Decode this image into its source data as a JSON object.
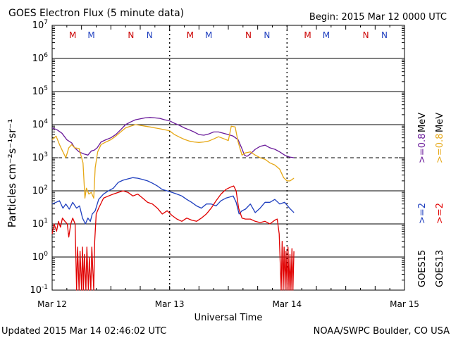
{
  "chart_data": {
    "type": "line",
    "title": "GOES Electron Flux (5 minute data)",
    "begin_label": "Begin: 2015 Mar 12 0000 UTC",
    "ylabel": "Particles cm⁻²s⁻¹sr⁻¹",
    "xlabel": "Universal Time",
    "updated_label": "Updated 2015 Mar 14 02:46:02 UTC",
    "credit_label": "NOAA/SWPC Boulder, CO USA",
    "y_scale": "log",
    "ylim": [
      0.1,
      10000000
    ],
    "y_ticks": [
      {
        "exp": "-1",
        "value": 0.1
      },
      {
        "exp": "0",
        "value": 1
      },
      {
        "exp": "1",
        "value": 10
      },
      {
        "exp": "2",
        "value": 100
      },
      {
        "exp": "3",
        "value": 1000
      },
      {
        "exp": "4",
        "value": 10000
      },
      {
        "exp": "5",
        "value": 100000
      },
      {
        "exp": "6",
        "value": 1000000
      },
      {
        "exp": "7",
        "value": 10000000
      }
    ],
    "y_tick_base": "10",
    "xlim": [
      0,
      72
    ],
    "x_unit": "hours since 2015 Mar 12 0000 UTC",
    "x_ticks": [
      {
        "label": "Mar 12",
        "t": 0
      },
      {
        "label": "Mar 13",
        "t": 24
      },
      {
        "label": "Mar 14",
        "t": 48
      },
      {
        "label": "Mar 15",
        "t": 72
      }
    ],
    "grid": "horizontal solid at decades; dotted vertical at day boundaries; dashed line at 10^3",
    "threshold_line": 1000,
    "mn_markers": [
      {
        "label": "M",
        "t": 4.2,
        "color": "#cc0000"
      },
      {
        "label": "M",
        "t": 8.0,
        "color": "#1f3fbf"
      },
      {
        "label": "N",
        "t": 16.1,
        "color": "#cc0000"
      },
      {
        "label": "N",
        "t": 19.9,
        "color": "#1f3fbf"
      },
      {
        "label": "M",
        "t": 28.2,
        "color": "#cc0000"
      },
      {
        "label": "M",
        "t": 32.0,
        "color": "#1f3fbf"
      },
      {
        "label": "N",
        "t": 40.1,
        "color": "#cc0000"
      },
      {
        "label": "N",
        "t": 43.9,
        "color": "#1f3fbf"
      },
      {
        "label": "M",
        "t": 52.2,
        "color": "#cc0000"
      },
      {
        "label": "M",
        "t": 56.0,
        "color": "#1f3fbf"
      },
      {
        "label": "N",
        "t": 64.1,
        "color": "#cc0000"
      },
      {
        "label": "N",
        "t": 67.9,
        "color": "#1f3fbf"
      }
    ],
    "legend_placement": "right side, vertical",
    "legend": [
      {
        "name": "GOES15",
        "entries": [
          {
            "label": ">=2",
            "unit": "",
            "color": "#1f3fbf"
          },
          {
            "label": ">=0.8",
            "unit": "MeV",
            "color": "#6a1b9a"
          }
        ]
      },
      {
        "name": "GOES13",
        "entries": [
          {
            "label": ">=2",
            "unit": "",
            "color": "#e00000"
          },
          {
            "label": ">=0.8",
            "unit": "MeV",
            "color": "#e6a817"
          }
        ]
      }
    ],
    "series": [
      {
        "name": "GOES15 >=0.8 MeV",
        "color": "#6a1b9a",
        "points": [
          [
            0,
            8000
          ],
          [
            1,
            7000
          ],
          [
            2,
            5500
          ],
          [
            3,
            3500
          ],
          [
            4,
            2800
          ],
          [
            4.6,
            2000
          ],
          [
            5.5,
            1500
          ],
          [
            6.5,
            1300
          ],
          [
            7.3,
            1200
          ],
          [
            8,
            1600
          ],
          [
            8.6,
            1700
          ],
          [
            9.2,
            2000
          ],
          [
            10,
            3000
          ],
          [
            11,
            3500
          ],
          [
            12,
            4000
          ],
          [
            13,
            5000
          ],
          [
            14,
            7000
          ],
          [
            15,
            10000
          ],
          [
            16,
            12000
          ],
          [
            17,
            14000
          ],
          [
            18,
            15000
          ],
          [
            19,
            16000
          ],
          [
            20,
            16500
          ],
          [
            21,
            16000
          ],
          [
            22,
            15500
          ],
          [
            23,
            14000
          ],
          [
            24,
            13000
          ],
          [
            25,
            11000
          ],
          [
            26,
            9500
          ],
          [
            27,
            8000
          ],
          [
            28,
            7000
          ],
          [
            29,
            6000
          ],
          [
            30,
            5000
          ],
          [
            31,
            4800
          ],
          [
            32,
            5200
          ],
          [
            33,
            6000
          ],
          [
            34,
            6000
          ],
          [
            35,
            5500
          ],
          [
            36,
            5000
          ],
          [
            37,
            4500
          ],
          [
            38,
            3500
          ],
          [
            38.7,
            2000
          ],
          [
            39.3,
            1200
          ],
          [
            39.8,
            1100
          ],
          [
            40.5,
            1300
          ],
          [
            41.5,
            1800
          ],
          [
            42.5,
            2200
          ],
          [
            43.5,
            2400
          ],
          [
            44.5,
            2000
          ],
          [
            45.5,
            1800
          ],
          [
            46.5,
            1500
          ],
          [
            47.5,
            1200
          ],
          [
            48.5,
            1050
          ],
          [
            49.4,
            1000
          ]
        ]
      },
      {
        "name": "GOES13 >=0.8 MeV",
        "color": "#e6a817",
        "points": [
          [
            0,
            3500
          ],
          [
            0.8,
            4500
          ],
          [
            1.5,
            2500
          ],
          [
            2.2,
            1500
          ],
          [
            2.8,
            1000
          ],
          [
            3.4,
            2000
          ],
          [
            4,
            2500
          ],
          [
            4.6,
            2000
          ],
          [
            5.5,
            1900
          ],
          [
            6.3,
            700
          ],
          [
            6.7,
            60
          ],
          [
            7,
            120
          ],
          [
            7.5,
            80
          ],
          [
            8,
            90
          ],
          [
            8.5,
            60
          ],
          [
            8.8,
            500
          ],
          [
            9.3,
            1500
          ],
          [
            10,
            2500
          ],
          [
            11,
            3000
          ],
          [
            12,
            3500
          ],
          [
            13,
            4500
          ],
          [
            14,
            6000
          ],
          [
            15,
            8000
          ],
          [
            16,
            9000
          ],
          [
            17,
            10000
          ],
          [
            18,
            9500
          ],
          [
            19,
            9000
          ],
          [
            20,
            8500
          ],
          [
            21,
            8000
          ],
          [
            22,
            7500
          ],
          [
            23,
            7000
          ],
          [
            24,
            6500
          ],
          [
            25,
            5000
          ],
          [
            26,
            4200
          ],
          [
            27,
            3600
          ],
          [
            28,
            3200
          ],
          [
            29,
            3000
          ],
          [
            30,
            2900
          ],
          [
            31,
            3000
          ],
          [
            32,
            3200
          ],
          [
            33,
            3700
          ],
          [
            34,
            4300
          ],
          [
            35,
            3800
          ],
          [
            36,
            3300
          ],
          [
            36.6,
            9000
          ],
          [
            37.4,
            8500
          ],
          [
            38,
            3000
          ],
          [
            38.8,
            1200
          ],
          [
            39.5,
            1400
          ],
          [
            40.5,
            1500
          ],
          [
            41.5,
            1200
          ],
          [
            42.5,
            1000
          ],
          [
            43.5,
            900
          ],
          [
            44.5,
            700
          ],
          [
            45.5,
            600
          ],
          [
            46.5,
            450
          ],
          [
            47.3,
            250
          ],
          [
            48,
            200
          ],
          [
            48.6,
            200
          ],
          [
            49.4,
            240
          ]
        ]
      },
      {
        "name": "GOES15 >=2",
        "color": "#1f3fbf",
        "points": [
          [
            0,
            40
          ],
          [
            0.8,
            45
          ],
          [
            1.5,
            50
          ],
          [
            2.2,
            30
          ],
          [
            2.8,
            40
          ],
          [
            3.5,
            28
          ],
          [
            4.2,
            45
          ],
          [
            5,
            30
          ],
          [
            5.6,
            35
          ],
          [
            6.2,
            15
          ],
          [
            6.8,
            10
          ],
          [
            7.3,
            15
          ],
          [
            7.8,
            12
          ],
          [
            8.2,
            20
          ],
          [
            8.8,
            25
          ],
          [
            9.5,
            55
          ],
          [
            10.5,
            80
          ],
          [
            11.5,
            100
          ],
          [
            12.5,
            120
          ],
          [
            13.5,
            180
          ],
          [
            14.5,
            210
          ],
          [
            15.5,
            230
          ],
          [
            16.5,
            250
          ],
          [
            17.5,
            240
          ],
          [
            18.5,
            220
          ],
          [
            19.5,
            200
          ],
          [
            20.5,
            170
          ],
          [
            21.5,
            140
          ],
          [
            22.5,
            110
          ],
          [
            23.5,
            100
          ],
          [
            24.5,
            90
          ],
          [
            25.5,
            80
          ],
          [
            26.5,
            70
          ],
          [
            27.5,
            55
          ],
          [
            28.5,
            45
          ],
          [
            29.5,
            35
          ],
          [
            30.5,
            30
          ],
          [
            31.5,
            40
          ],
          [
            32.5,
            40
          ],
          [
            33.5,
            35
          ],
          [
            34.5,
            50
          ],
          [
            35.5,
            60
          ],
          [
            36.3,
            65
          ],
          [
            37,
            70
          ],
          [
            37.6,
            45
          ],
          [
            38.2,
            20
          ],
          [
            38.8,
            25
          ],
          [
            39.5,
            28
          ],
          [
            40.5,
            40
          ],
          [
            41.5,
            22
          ],
          [
            42.5,
            30
          ],
          [
            43.5,
            45
          ],
          [
            44.5,
            45
          ],
          [
            45.5,
            55
          ],
          [
            46.5,
            40
          ],
          [
            47.5,
            45
          ],
          [
            48.5,
            30
          ],
          [
            49.4,
            22
          ]
        ]
      },
      {
        "name": "GOES13 >=2",
        "color": "#e00000",
        "points": [
          [
            0,
            5
          ],
          [
            0.4,
            10
          ],
          [
            0.9,
            6
          ],
          [
            1.3,
            12
          ],
          [
            1.7,
            8
          ],
          [
            2.1,
            15
          ],
          [
            2.6,
            12
          ],
          [
            3.1,
            10
          ],
          [
            3.4,
            4
          ],
          [
            3.8,
            10
          ],
          [
            4.2,
            15
          ],
          [
            4.7,
            10
          ],
          [
            5.0,
            0.1
          ],
          [
            5.2,
            2
          ],
          [
            5.5,
            0.1
          ],
          [
            5.7,
            1.5
          ],
          [
            6.0,
            0.1
          ],
          [
            6.2,
            2
          ],
          [
            6.4,
            0.1
          ],
          [
            6.6,
            1.2
          ],
          [
            6.9,
            0.1
          ],
          [
            7.1,
            2
          ],
          [
            7.4,
            0.1
          ],
          [
            7.6,
            1
          ],
          [
            7.9,
            0.1
          ],
          [
            8.1,
            2
          ],
          [
            8.5,
            0.1
          ],
          [
            8.7,
            3
          ],
          [
            9.0,
            20
          ],
          [
            9.5,
            30
          ],
          [
            10.5,
            60
          ],
          [
            11.5,
            70
          ],
          [
            12.5,
            80
          ],
          [
            13.5,
            90
          ],
          [
            14.5,
            100
          ],
          [
            15.5,
            90
          ],
          [
            16.5,
            70
          ],
          [
            17.5,
            80
          ],
          [
            18.5,
            60
          ],
          [
            19.5,
            45
          ],
          [
            20.5,
            40
          ],
          [
            21.5,
            30
          ],
          [
            22.5,
            20
          ],
          [
            23.5,
            25
          ],
          [
            24.5,
            18
          ],
          [
            25.5,
            14
          ],
          [
            26.5,
            12
          ],
          [
            27.5,
            15
          ],
          [
            28.5,
            13
          ],
          [
            29.5,
            12
          ],
          [
            30.5,
            15
          ],
          [
            31.5,
            20
          ],
          [
            32.5,
            30
          ],
          [
            33.5,
            50
          ],
          [
            34.5,
            80
          ],
          [
            35.5,
            110
          ],
          [
            36.5,
            130
          ],
          [
            37.1,
            140
          ],
          [
            37.6,
            100
          ],
          [
            38.1,
            30
          ],
          [
            38.8,
            15
          ],
          [
            39.5,
            14
          ],
          [
            40.5,
            14
          ],
          [
            41.5,
            12
          ],
          [
            42.5,
            11
          ],
          [
            43.5,
            12
          ],
          [
            44.5,
            10
          ],
          [
            45.5,
            13
          ],
          [
            46,
            14
          ],
          [
            46.4,
            5
          ],
          [
            46.8,
            0.1
          ],
          [
            47.0,
            3
          ],
          [
            47.2,
            0.1
          ],
          [
            47.4,
            2
          ],
          [
            47.6,
            0.1
          ],
          [
            47.8,
            1.5
          ],
          [
            48.0,
            0.1
          ],
          [
            48.2,
            2
          ],
          [
            48.4,
            0.1
          ],
          [
            48.6,
            1.2
          ],
          [
            48.8,
            0.1
          ],
          [
            49.0,
            1.8
          ],
          [
            49.2,
            0.1
          ],
          [
            49.4,
            1.5
          ]
        ]
      }
    ]
  }
}
